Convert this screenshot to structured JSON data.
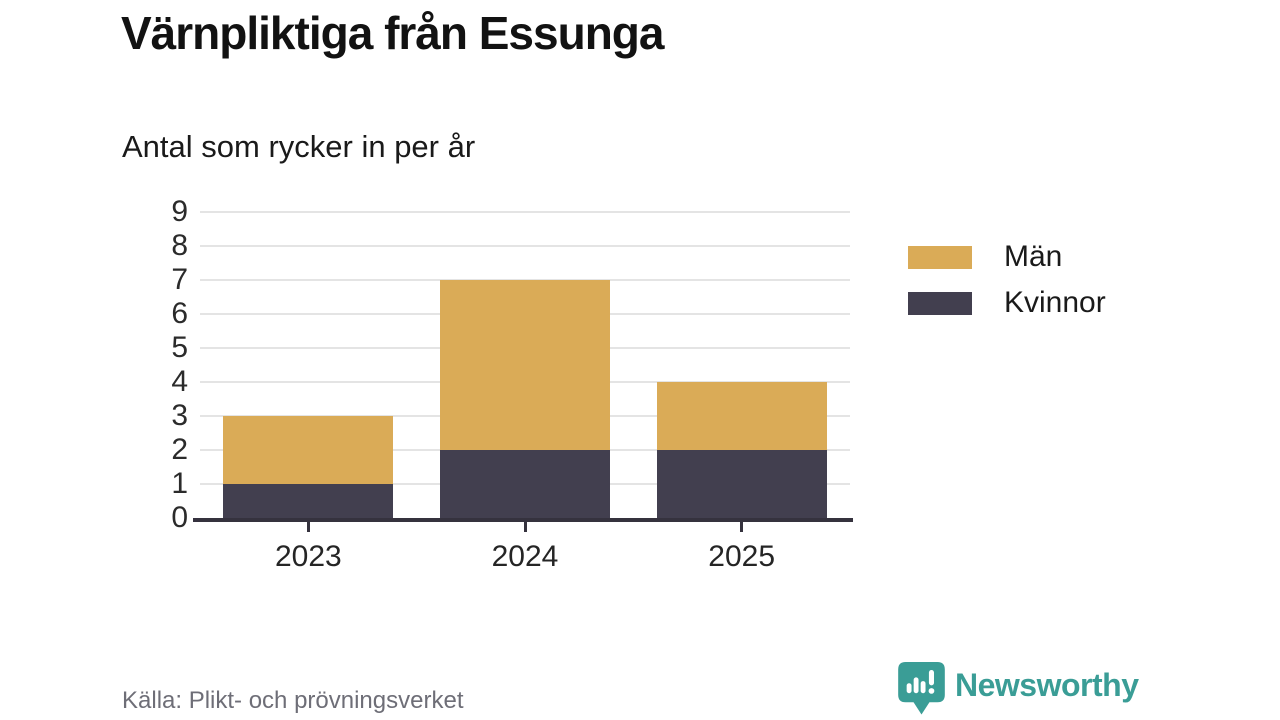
{
  "header": {
    "title": "Värnpliktiga från Essunga",
    "subtitle": "Antal som rycker in per år"
  },
  "chart_data": {
    "type": "bar",
    "stacked": true,
    "title": "Värnpliktiga från Essunga",
    "subtitle": "Antal som rycker in per år",
    "xlabel": "",
    "ylabel": "Antal som rycker in per år",
    "categories": [
      "2023",
      "2024",
      "2025"
    ],
    "series": [
      {
        "name": "Kvinnor",
        "color": "#423f4f",
        "values": [
          1,
          2,
          2
        ]
      },
      {
        "name": "Män",
        "color": "#daab57",
        "values": [
          2,
          5,
          2
        ]
      }
    ],
    "totals": [
      3,
      7,
      4
    ],
    "ylim": [
      0,
      9
    ],
    "yticks": [
      0,
      1,
      2,
      3,
      4,
      5,
      6,
      7,
      8,
      9
    ],
    "grid": true,
    "legend_position": "right",
    "legend_order": [
      "Män",
      "Kvinnor"
    ]
  },
  "legend": {
    "items": [
      {
        "label": "Män",
        "color": "#daab57"
      },
      {
        "label": "Kvinnor",
        "color": "#423f4f"
      }
    ]
  },
  "footer": {
    "source": "Källa: Plikt- och prövningsverket"
  },
  "branding": {
    "name": "Newsworthy",
    "color": "#3a9d96",
    "icon": "bar-chart-speech-bubble-icon"
  },
  "colors": {
    "men": "#daab57",
    "women": "#423f4f",
    "axis": "#35323e",
    "grid": "#e4e4e4",
    "source_text": "#6e6e77",
    "brand_teal": "#3a9d96"
  }
}
